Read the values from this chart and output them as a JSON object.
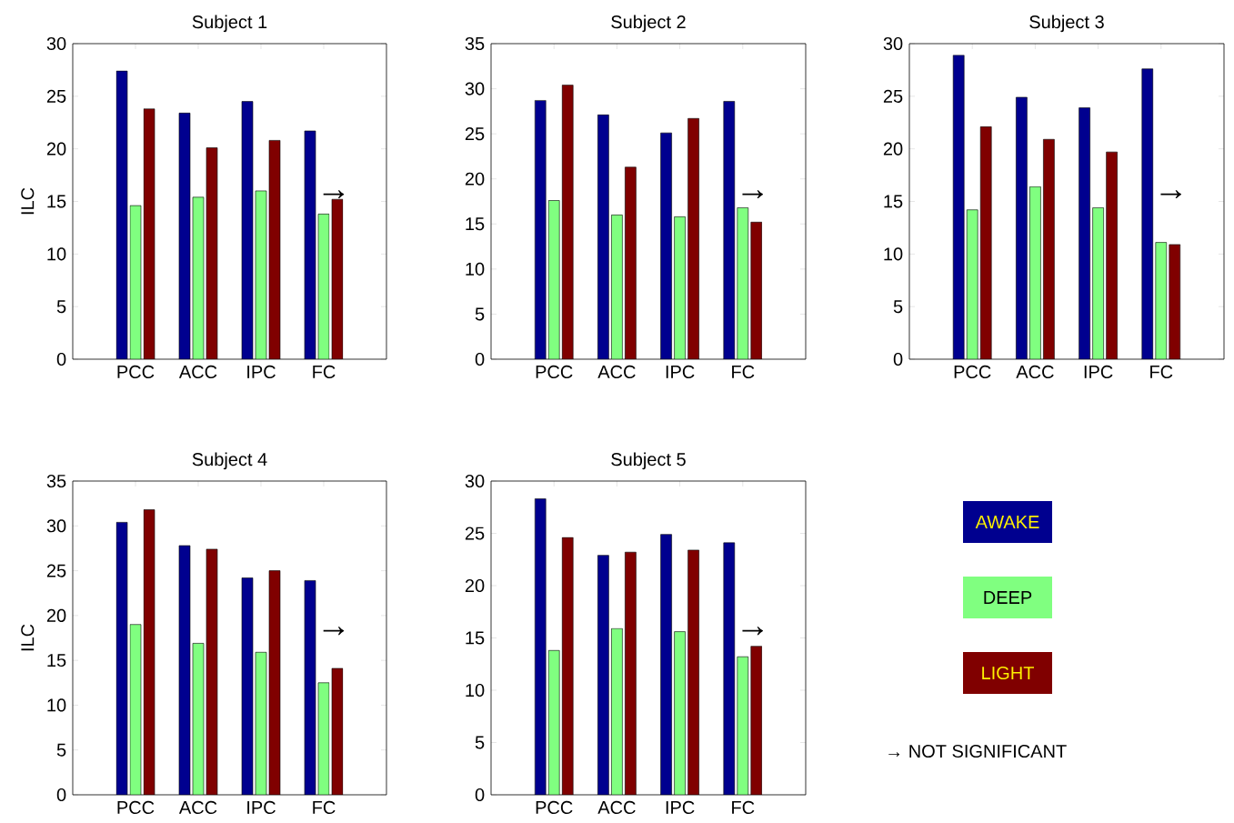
{
  "chart_data": [
    {
      "type": "bar",
      "title": "Subject 1",
      "ylabel": "ILC",
      "categories": [
        "PCC",
        "ACC",
        "IPC",
        "FC"
      ],
      "ylim": [
        0,
        30
      ],
      "yticks": [
        0,
        5,
        10,
        15,
        20,
        25,
        30
      ],
      "series": [
        {
          "color": "#00008f",
          "values": [
            27.4,
            23.4,
            24.5,
            21.7
          ]
        },
        {
          "color": "#80ff80",
          "values": [
            14.6,
            15.4,
            16.0,
            13.8
          ]
        },
        {
          "color": "#800000",
          "values": [
            23.8,
            20.1,
            20.8,
            15.2
          ]
        }
      ],
      "annotations": [
        "→"
      ]
    },
    {
      "type": "bar",
      "title": "Subject 2",
      "categories": [
        "PCC",
        "ACC",
        "IPC",
        "FC"
      ],
      "ylim": [
        0,
        35
      ],
      "yticks": [
        0,
        5,
        10,
        15,
        20,
        25,
        30,
        35
      ],
      "series": [
        {
          "color": "#00008f",
          "values": [
            28.7,
            27.1,
            25.1,
            28.6
          ]
        },
        {
          "color": "#80ff80",
          "values": [
            17.6,
            16.0,
            15.8,
            16.8
          ]
        },
        {
          "color": "#800000",
          "values": [
            30.4,
            21.3,
            26.7,
            15.2
          ]
        }
      ],
      "annotations": [
        "→"
      ]
    },
    {
      "type": "bar",
      "title": "Subject 3",
      "categories": [
        "PCC",
        "ACC",
        "IPC",
        "FC"
      ],
      "ylim": [
        0,
        30
      ],
      "yticks": [
        0,
        5,
        10,
        15,
        20,
        25,
        30
      ],
      "series": [
        {
          "color": "#00008f",
          "values": [
            28.9,
            24.9,
            23.9,
            27.6
          ]
        },
        {
          "color": "#80ff80",
          "values": [
            14.2,
            16.4,
            14.4,
            11.1
          ]
        },
        {
          "color": "#800000",
          "values": [
            22.1,
            20.9,
            19.7,
            10.9
          ]
        }
      ],
      "annotations": [
        "→"
      ]
    },
    {
      "type": "bar",
      "title": "Subject 4",
      "ylabel": "ILC",
      "categories": [
        "PCC",
        "ACC",
        "IPC",
        "FC"
      ],
      "ylim": [
        0,
        35
      ],
      "yticks": [
        0,
        5,
        10,
        15,
        20,
        25,
        30,
        35
      ],
      "series": [
        {
          "color": "#00008f",
          "values": [
            30.4,
            27.8,
            24.2,
            23.9
          ]
        },
        {
          "color": "#80ff80",
          "values": [
            19.0,
            16.9,
            15.9,
            12.5
          ]
        },
        {
          "color": "#800000",
          "values": [
            31.8,
            27.4,
            25.0,
            14.1
          ]
        }
      ],
      "annotations": [
        "→"
      ]
    },
    {
      "type": "bar",
      "title": "Subject 5",
      "categories": [
        "PCC",
        "ACC",
        "IPC",
        "FC"
      ],
      "ylim": [
        0,
        30
      ],
      "yticks": [
        0,
        5,
        10,
        15,
        20,
        25,
        30
      ],
      "legend": "right",
      "series": [
        {
          "name": "AWAKE",
          "color": "#00008f",
          "values": [
            28.3,
            22.9,
            24.9,
            24.1
          ]
        },
        {
          "name": "DEEP",
          "color": "#80ff80",
          "values": [
            13.8,
            15.9,
            15.6,
            13.2
          ]
        },
        {
          "name": "LIGHT",
          "color": "#800000",
          "values": [
            24.6,
            23.2,
            23.4,
            14.2
          ]
        }
      ],
      "annotations": [
        "→",
        "→ NOT SIGNIFICANT"
      ]
    }
  ]
}
